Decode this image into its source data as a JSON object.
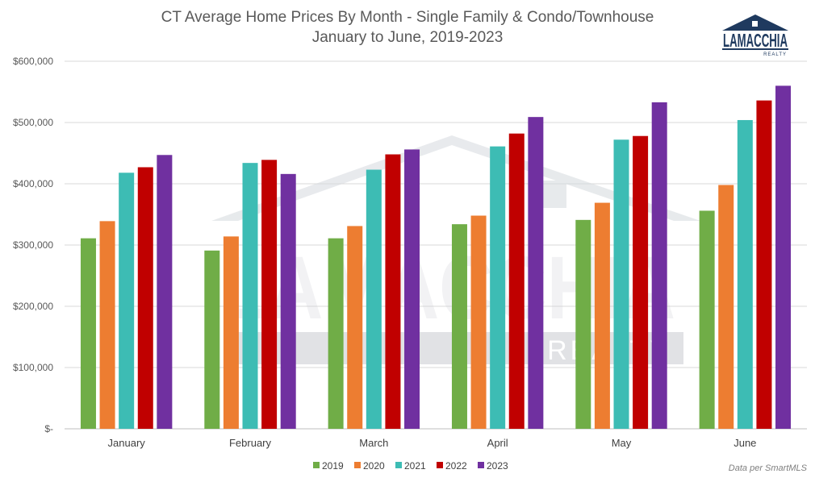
{
  "chart_data": {
    "type": "bar",
    "title": "CT Average Home Prices By Month - Single Family & Condo/Townhouse",
    "subtitle": "January to June, 2019-2023",
    "categories": [
      "January",
      "February",
      "March",
      "April",
      "May",
      "June"
    ],
    "series": [
      {
        "name": "2019",
        "color": "#70ad47",
        "values": [
          311000,
          291000,
          311000,
          334000,
          341000,
          356000
        ]
      },
      {
        "name": "2020",
        "color": "#ed7d31",
        "values": [
          339000,
          314000,
          331000,
          348000,
          369000,
          398000
        ]
      },
      {
        "name": "2021",
        "color": "#3dbcb4",
        "values": [
          418000,
          434000,
          423000,
          461000,
          472000,
          504000
        ]
      },
      {
        "name": "2022",
        "color": "#c00000",
        "values": [
          427000,
          439000,
          448000,
          482000,
          478000,
          536000
        ]
      },
      {
        "name": "2023",
        "color": "#7030a0",
        "values": [
          447000,
          416000,
          456000,
          509000,
          533000,
          560000
        ]
      }
    ],
    "y_ticks": [
      "$-",
      "$100,000",
      "$200,000",
      "$300,000",
      "$400,000",
      "$500,000",
      "$600,000"
    ],
    "ylim": [
      0,
      600000
    ],
    "grid": true,
    "legend_position": "bottom"
  },
  "footnote": "Data per SmartMLS",
  "logo": {
    "name": "LAMACCHIA",
    "sub": "REALTY"
  },
  "watermark": {
    "name": "LAMACCHIA",
    "sub": "REALTY"
  }
}
